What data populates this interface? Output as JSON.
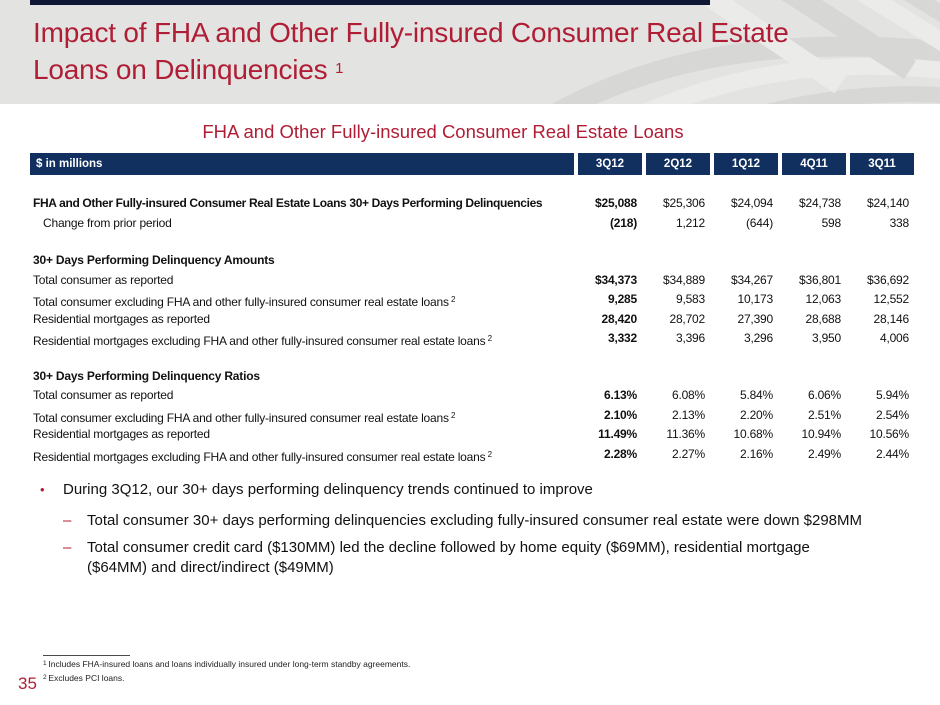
{
  "page": {
    "number": "35"
  },
  "header": {
    "title_line1": "Impact of FHA and Other Fully-insured Consumer Real Estate",
    "title_line2": "Loans on Delinquencies",
    "title_superscript": "1"
  },
  "table": {
    "subtitle": "FHA and Other Fully-insured Consumer Real Estate Loans",
    "unit_label": "$ in millions",
    "columns": [
      "3Q12",
      "2Q12",
      "1Q12",
      "4Q11",
      "3Q11"
    ],
    "groups": [
      {
        "header": null,
        "rows": [
          {
            "label": "FHA and Other Fully-insured Consumer Real Estate Loans 30+ Days Performing Delinquencies",
            "bold_label": true,
            "indent": false,
            "sup": "",
            "values": [
              "$25,088",
              "$25,306",
              "$24,094",
              "$24,738",
              "$24,140"
            ]
          },
          {
            "label": "Change from prior period",
            "bold_label": false,
            "indent": true,
            "sup": "",
            "values": [
              "(218)",
              "1,212",
              "(644)",
              "598",
              "338"
            ]
          }
        ]
      },
      {
        "header": "30+ Days Performing Delinquency Amounts",
        "rows": [
          {
            "label": "Total consumer as reported",
            "bold_label": false,
            "indent": false,
            "sup": "",
            "values": [
              "$34,373",
              "$34,889",
              "$34,267",
              "$36,801",
              "$36,692"
            ]
          },
          {
            "label": "Total consumer excluding FHA and other fully-insured consumer real estate loans",
            "bold_label": false,
            "indent": false,
            "sup": "2",
            "values": [
              "9,285",
              "9,583",
              "10,173",
              "12,063",
              "12,552"
            ]
          },
          {
            "label": "Residential mortgages as reported",
            "bold_label": false,
            "indent": false,
            "sup": "",
            "values": [
              "28,420",
              "28,702",
              "27,390",
              "28,688",
              "28,146"
            ]
          },
          {
            "label": "Residential mortgages excluding FHA and other fully-insured consumer real estate loans",
            "bold_label": false,
            "indent": false,
            "sup": "2",
            "values": [
              "3,332",
              "3,396",
              "3,296",
              "3,950",
              "4,006"
            ]
          }
        ]
      },
      {
        "header": "30+ Days Performing Delinquency Ratios",
        "rows": [
          {
            "label": "Total consumer as reported",
            "bold_label": false,
            "indent": false,
            "sup": "",
            "values": [
              "6.13%",
              "6.08%",
              "5.84%",
              "6.06%",
              "5.94%"
            ]
          },
          {
            "label": "Total consumer excluding FHA and other fully-insured consumer real estate loans",
            "bold_label": false,
            "indent": false,
            "sup": "2",
            "values": [
              "2.10%",
              "2.13%",
              "2.20%",
              "2.51%",
              "2.54%"
            ]
          },
          {
            "label": "Residential mortgages as reported",
            "bold_label": false,
            "indent": false,
            "sup": "",
            "values": [
              "11.49%",
              "11.36%",
              "10.68%",
              "10.94%",
              "10.56%"
            ]
          },
          {
            "label": "Residential mortgages excluding FHA and other fully-insured consumer real estate loans",
            "bold_label": false,
            "indent": false,
            "sup": "2",
            "values": [
              "2.28%",
              "2.27%",
              "2.16%",
              "2.49%",
              "2.44%"
            ]
          }
        ]
      }
    ]
  },
  "bullets": {
    "items": [
      {
        "level": 1,
        "marker": "•",
        "text": "During 3Q12, our 30+ days performing delinquency trends continued to improve"
      },
      {
        "level": 2,
        "marker": "–",
        "text": "Total consumer 30+ days performing delinquencies excluding fully-insured consumer real estate were down $298MM"
      },
      {
        "level": 2,
        "marker": "–",
        "text": "Total consumer credit card ($130MM) led the decline followed by home equity ($69MM), residential mortgage ($64MM) and direct/indirect ($49MM)"
      }
    ]
  },
  "footnotes": [
    {
      "sup": "1",
      "text": "Includes FHA-insured loans and loans individually insured under long-term standby agreements."
    },
    {
      "sup": "2",
      "text": "Excludes PCI loans."
    }
  ],
  "colors": {
    "accent_red": "#B01E36",
    "table_header_navy": "#12305F",
    "band_gray": "#E3E3E2",
    "top_rule_navy": "#101735",
    "text_black": "#111111",
    "pattern_light": "#EBEBEA",
    "pattern_dark": "#D7D7D6"
  }
}
